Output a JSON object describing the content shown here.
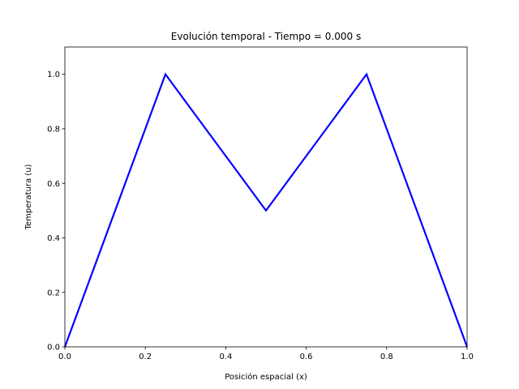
{
  "chart_data": {
    "type": "line",
    "title": "Evolución temporal - Tiempo = 0.000 s",
    "xlabel": "Posición espacial (x)",
    "ylabel": "Temperatura (u)",
    "xlim": [
      0.0,
      1.0
    ],
    "ylim": [
      0.0,
      1.1
    ],
    "xticks": [
      0.0,
      0.2,
      0.4,
      0.6,
      0.8,
      1.0
    ],
    "xtick_labels": [
      "0.0",
      "0.2",
      "0.4",
      "0.6",
      "0.8",
      "1.0"
    ],
    "yticks": [
      0.0,
      0.2,
      0.4,
      0.6,
      0.8,
      1.0
    ],
    "ytick_labels": [
      "0.0",
      "0.2",
      "0.4",
      "0.6",
      "0.8",
      "1.0"
    ],
    "grid": false,
    "series": [
      {
        "color": "#0000ff",
        "x": [
          0.0,
          0.25,
          0.5,
          0.75,
          1.0
        ],
        "y": [
          0.0,
          1.0,
          0.5,
          1.0,
          0.0
        ]
      }
    ]
  }
}
